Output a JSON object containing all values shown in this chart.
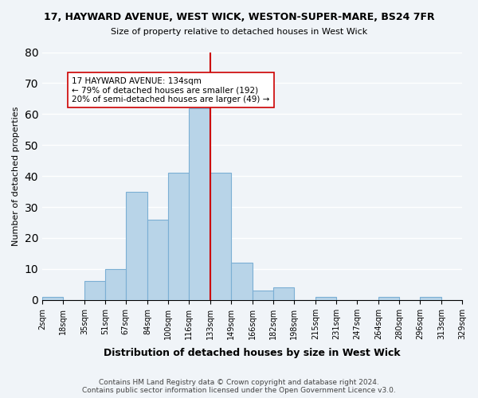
{
  "title": "17, HAYWARD AVENUE, WEST WICK, WESTON-SUPER-MARE, BS24 7FR",
  "subtitle": "Size of property relative to detached houses in West Wick",
  "xlabel": "Distribution of detached houses by size in West Wick",
  "ylabel": "Number of detached properties",
  "bar_color": "#b8d4e8",
  "bar_edge_color": "#7bafd4",
  "bin_edges": [
    2,
    18,
    35,
    51,
    67,
    84,
    100,
    116,
    133,
    149,
    166,
    182,
    198,
    215,
    231,
    247,
    264,
    280,
    296,
    313,
    329
  ],
  "bin_labels": [
    "2sqm",
    "18sqm",
    "35sqm",
    "51sqm",
    "67sqm",
    "84sqm",
    "100sqm",
    "116sqm",
    "133sqm",
    "149sqm",
    "166sqm",
    "182sqm",
    "198sqm",
    "215sqm",
    "231sqm",
    "247sqm",
    "264sqm",
    "280sqm",
    "296sqm",
    "313sqm",
    "329sqm"
  ],
  "counts": [
    1,
    0,
    6,
    10,
    35,
    26,
    41,
    62,
    41,
    12,
    3,
    4,
    0,
    1,
    0,
    0,
    1,
    0,
    1,
    0
  ],
  "property_line_x": 133,
  "property_line_color": "#cc0000",
  "ylim": [
    0,
    80
  ],
  "yticks": [
    0,
    10,
    20,
    30,
    40,
    50,
    60,
    70,
    80
  ],
  "annotation_text": "17 HAYWARD AVENUE: 134sqm\n← 79% of detached houses are smaller (192)\n20% of semi-detached houses are larger (49) →",
  "annotation_box_color": "#ffffff",
  "annotation_box_edge_color": "#cc0000",
  "footer_text": "Contains HM Land Registry data © Crown copyright and database right 2024.\nContains public sector information licensed under the Open Government Licence v3.0.",
  "background_color": "#f0f4f8",
  "grid_color": "#ffffff"
}
